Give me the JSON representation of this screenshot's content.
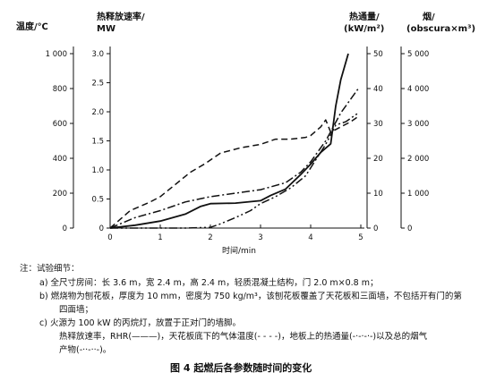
{
  "chart_data": {
    "type": "line",
    "x_axis": {
      "label": "时间/min",
      "range": [
        0,
        5
      ],
      "ticks": [
        "0",
        "1",
        "2",
        "3",
        "4",
        "5"
      ]
    },
    "axes": {
      "temperature": {
        "label": "温度/℃",
        "range": [
          0,
          1000
        ],
        "ticks": [
          "0",
          "200",
          "400",
          "600",
          "800",
          "1 000"
        ]
      },
      "hrr": {
        "label_line1": "热释放速率/",
        "label_line2": "MW",
        "range": [
          0,
          3.0
        ],
        "ticks": [
          "0",
          "0.5",
          "1.0",
          "1.5",
          "2.0",
          "2.5",
          "3.0"
        ]
      },
      "heat_flux": {
        "label_line1": "热通量/",
        "label_line2": "(kW/m²)",
        "range": [
          0,
          50
        ],
        "ticks": [
          "0",
          "10",
          "20",
          "30",
          "40",
          "50"
        ]
      },
      "smoke": {
        "label_line1": "烟/",
        "label_line2": "(obscura×m³)",
        "range": [
          0,
          5000
        ],
        "ticks": [
          "0",
          "1 000",
          "2 000",
          "3 000",
          "4 000",
          "5 000"
        ]
      }
    },
    "series": [
      {
        "name": "热释放速率",
        "axis": "hrr",
        "style": "solid",
        "x": [
          0,
          0.5,
          1.0,
          1.5,
          1.8,
          2.0,
          2.5,
          3.0,
          3.2,
          3.5,
          3.8,
          4.0,
          4.2,
          4.4,
          4.5,
          4.6,
          4.75
        ],
        "y": [
          0,
          0.05,
          0.12,
          0.24,
          0.37,
          0.42,
          0.43,
          0.47,
          0.56,
          0.67,
          0.92,
          1.1,
          1.3,
          1.45,
          2.1,
          2.55,
          3.0
        ]
      },
      {
        "name": "天花板底下的气体温度",
        "axis": "temperature",
        "style": "dashed",
        "x": [
          0,
          0.4,
          0.8,
          1.0,
          1.3,
          1.6,
          1.9,
          2.2,
          2.6,
          3.0,
          3.3,
          3.6,
          3.9,
          4.0,
          4.2,
          4.3,
          4.4,
          4.6,
          4.8,
          4.95
        ],
        "y": [
          0,
          100,
          150,
          180,
          250,
          320,
          370,
          430,
          460,
          480,
          510,
          510,
          520,
          530,
          580,
          620,
          550,
          580,
          610,
          640
        ]
      },
      {
        "name": "地板上的热通量",
        "axis": "heat_flux",
        "style": "dash-dot",
        "x": [
          0,
          0.5,
          1.0,
          1.5,
          2.0,
          2.5,
          3.0,
          3.5,
          3.8,
          4.0,
          4.3,
          4.6,
          4.8,
          4.95
        ],
        "y": [
          0,
          3,
          5,
          7.5,
          9,
          10,
          11,
          13,
          16,
          19,
          25,
          33,
          37,
          40
        ]
      },
      {
        "name": "烟气产物",
        "axis": "smoke",
        "style": "dash-dot-dot",
        "x": [
          0,
          1.5,
          2.0,
          2.2,
          2.5,
          2.8,
          3.0,
          3.3,
          3.6,
          3.9,
          4.1,
          4.3,
          4.5,
          4.7,
          4.95
        ],
        "y": [
          0,
          0,
          20,
          120,
          300,
          500,
          700,
          900,
          1150,
          1500,
          1950,
          2400,
          2950,
          3050,
          3300
        ]
      }
    ]
  },
  "notes": {
    "head": "注：试验细节：",
    "a": "a)   全尺寸房间：长 3.6 m，宽 2.4 m，高 2.4 m，轻质混凝土结构，门 2.0 m×0.8 m；",
    "b1": "b)   燃烧物为刨花板，厚度为 10 mm，密度为 750 kg/m³，该刨花板覆盖了天花板和三面墙，不包括开有门的第",
    "b2": "四面墙；",
    "c1": "c)   火源为 100 kW 的丙烷灯，放置于正对门的墙脚。",
    "c2": "热释放速率，RHR(———)，天花板底下的气体温度(- - - -)，地板上的热通量(-·-·-·-)以及总的烟气",
    "c3": "产物(-··-··-)。"
  },
  "caption": "图 4   起燃后各参数随时间的变化"
}
